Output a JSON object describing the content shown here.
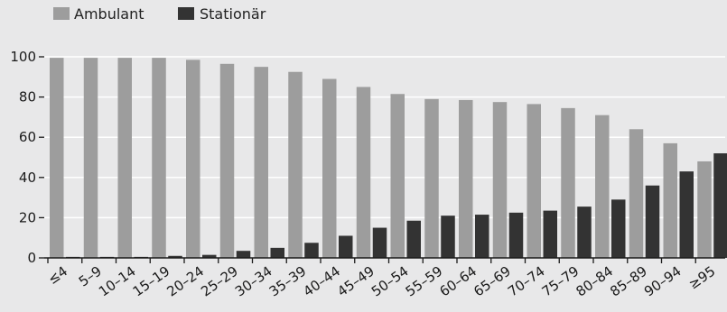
{
  "chart_data": {
    "type": "bar",
    "title": "",
    "xlabel": "",
    "ylabel": "",
    "ylim": [
      0,
      100
    ],
    "yticks": [
      0,
      20,
      40,
      60,
      80,
      100
    ],
    "grid": true,
    "legend_position": "top-left",
    "categories": [
      "≤4",
      "5–9",
      "10–14",
      "15–19",
      "20–24",
      "25–29",
      "30–34",
      "35–39",
      "40–44",
      "45–49",
      "50–54",
      "55–59",
      "60–64",
      "65–69",
      "70–74",
      "75–79",
      "80–84",
      "85–89",
      "90–94",
      "≥95"
    ],
    "series": [
      {
        "name": "Ambulant",
        "color": "#9d9d9d",
        "values": [
          99.5,
          99.5,
          99.5,
          99.5,
          98.5,
          96.5,
          95,
          92.5,
          89,
          85,
          81.5,
          79,
          78.5,
          77.5,
          76.5,
          74.5,
          71,
          64,
          57,
          48
        ]
      },
      {
        "name": "Stationär",
        "color": "#333333",
        "values": [
          0.5,
          0.5,
          0.5,
          1,
          1.5,
          3.5,
          5,
          7.5,
          11,
          15,
          18.5,
          21,
          21.5,
          22.5,
          23.5,
          25.5,
          29,
          36,
          43,
          52
        ]
      }
    ]
  },
  "colors": {
    "background": "#e8e8e9",
    "grid": "#ffffff",
    "axis": "#1a1a1a"
  }
}
